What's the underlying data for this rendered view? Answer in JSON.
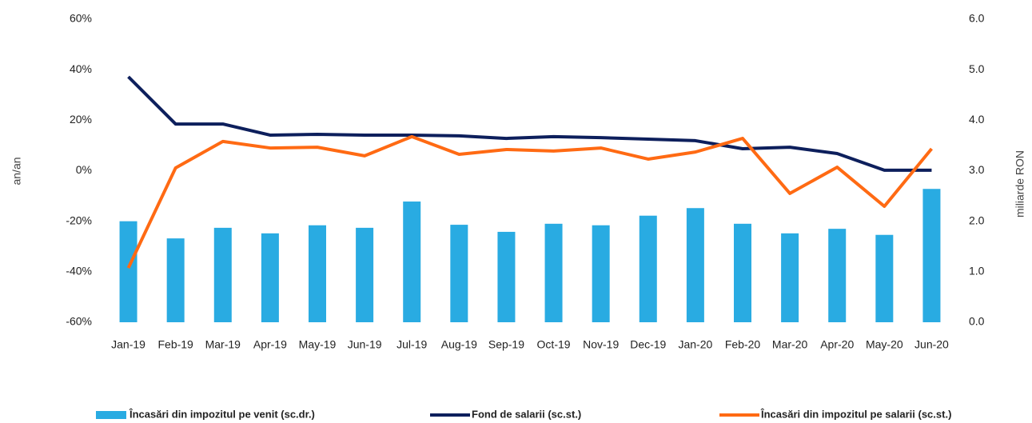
{
  "chart_data": {
    "type": "bar",
    "categories": [
      "Jan-19",
      "Feb-19",
      "Mar-19",
      "Apr-19",
      "May-19",
      "Jun-19",
      "Jul-19",
      "Aug-19",
      "Sep-19",
      "Oct-19",
      "Nov-19",
      "Dec-19",
      "Jan-20",
      "Feb-20",
      "Mar-20",
      "Apr-20",
      "May-20",
      "Jun-20"
    ],
    "y_label": "an/an",
    "y2_label": "miliarde RON",
    "ylim": [
      -60,
      60
    ],
    "yticks": [
      {
        "value": -60,
        "label": "-60%"
      },
      {
        "value": -40,
        "label": "-40%"
      },
      {
        "value": -20,
        "label": "-20%"
      },
      {
        "value": 0,
        "label": "0%"
      },
      {
        "value": 20,
        "label": "20%"
      },
      {
        "value": 40,
        "label": "40%"
      },
      {
        "value": 60,
        "label": "60%"
      }
    ],
    "y2lim": [
      0,
      6
    ],
    "y2ticks": [
      {
        "value": 0,
        "label": "0.0"
      },
      {
        "value": 1,
        "label": "1.0"
      },
      {
        "value": 2,
        "label": "2.0"
      },
      {
        "value": 3,
        "label": "3.0"
      },
      {
        "value": 4,
        "label": "4.0"
      },
      {
        "value": 5,
        "label": "5.0"
      },
      {
        "value": 6,
        "label": "6.0"
      }
    ],
    "grid": false,
    "legend": "bottom",
    "series": [
      {
        "name": "Încasări din impozitul pe venit (sc.dr.)",
        "type": "bar",
        "axis": "y2",
        "color": "#29abe2",
        "values": [
          2.0,
          1.66,
          1.87,
          1.76,
          1.92,
          1.87,
          2.39,
          1.93,
          1.79,
          1.95,
          1.92,
          2.11,
          2.26,
          1.95,
          1.76,
          1.85,
          1.73,
          2.64
        ]
      },
      {
        "name": "Fond de salarii (sc.st.)",
        "type": "line",
        "axis": "y",
        "color": "#0d1f5c",
        "values": [
          37.2,
          18.5,
          18.5,
          14.1,
          14.4,
          14.1,
          14.1,
          13.8,
          12.8,
          13.5,
          13.1,
          12.5,
          11.9,
          8.7,
          9.3,
          6.8,
          0.2,
          0.2
        ]
      },
      {
        "name": "Încasări din impozitul pe salarii (sc.st.)",
        "type": "line",
        "axis": "y",
        "color": "#ff6a13",
        "values": [
          -38.5,
          1.1,
          11.6,
          9.0,
          9.3,
          5.9,
          13.5,
          6.5,
          8.4,
          7.8,
          9.0,
          4.6,
          7.4,
          12.8,
          -9.0,
          1.4,
          -14.1,
          8.7
        ]
      }
    ]
  }
}
